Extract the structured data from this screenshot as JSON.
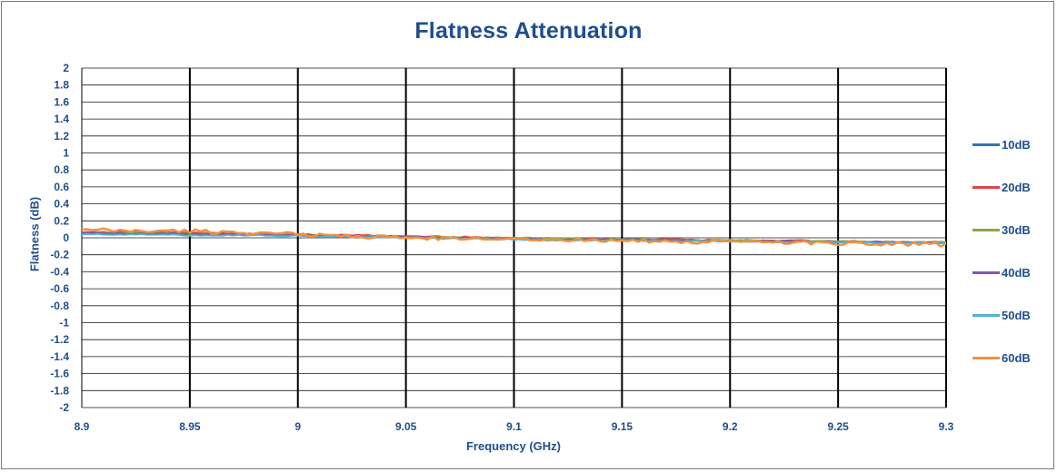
{
  "chart_data": {
    "type": "line",
    "title": "Flatness Attenuation",
    "xlabel": "Frequency (GHz)",
    "ylabel": "Flatness (dB)",
    "xlim": [
      8.9,
      9.3
    ],
    "ylim": [
      -2,
      2
    ],
    "x_ticks": [
      "8.9",
      "8.95",
      "9",
      "9.05",
      "9.1",
      "9.15",
      "9.2",
      "9.25",
      "9.3"
    ],
    "y_ticks": [
      "2",
      "1.8",
      "1.6",
      "1.4",
      "1.2",
      "1",
      "0.8",
      "0.6",
      "0.4",
      "0.2",
      "0",
      "-0.2",
      "-0.4",
      "-0.6",
      "-0.8",
      "-1",
      "-1.2",
      "-1.4",
      "-1.6",
      "-1.8",
      "-2"
    ],
    "grid": true,
    "legend_position": "right",
    "x": [
      8.9,
      8.925,
      8.95,
      8.975,
      9.0,
      9.025,
      9.05,
      9.075,
      9.1,
      9.125,
      9.15,
      9.175,
      9.2,
      9.225,
      9.25,
      9.275,
      9.3
    ],
    "series": [
      {
        "name": "10dB",
        "color": "#2e75b6",
        "values": [
          0.05,
          0.05,
          0.04,
          0.04,
          0.03,
          0.02,
          0.01,
          0.0,
          -0.01,
          -0.02,
          -0.02,
          -0.03,
          -0.03,
          -0.04,
          -0.05,
          -0.05,
          -0.06
        ]
      },
      {
        "name": "20dB",
        "color": "#e0434b",
        "values": [
          0.07,
          0.07,
          0.06,
          0.05,
          0.04,
          0.03,
          0.02,
          0.01,
          0.0,
          -0.01,
          -0.02,
          -0.02,
          -0.03,
          -0.03,
          -0.04,
          -0.05,
          -0.05
        ]
      },
      {
        "name": "30dB",
        "color": "#8aa844",
        "values": [
          0.06,
          0.06,
          0.05,
          0.04,
          0.03,
          0.02,
          0.01,
          0.0,
          0.0,
          -0.01,
          -0.02,
          -0.03,
          -0.03,
          -0.04,
          -0.04,
          -0.05,
          -0.05
        ]
      },
      {
        "name": "40dB",
        "color": "#7a5ab0",
        "values": [
          0.06,
          0.05,
          0.05,
          0.04,
          0.03,
          0.02,
          0.01,
          0.0,
          -0.01,
          -0.02,
          -0.02,
          -0.03,
          -0.04,
          -0.04,
          -0.05,
          -0.05,
          -0.06
        ]
      },
      {
        "name": "50dB",
        "color": "#4fb3d9",
        "values": [
          0.04,
          0.04,
          0.03,
          0.03,
          0.02,
          0.01,
          0.0,
          -0.01,
          -0.02,
          -0.03,
          -0.03,
          -0.04,
          -0.04,
          -0.05,
          -0.05,
          -0.06,
          -0.06
        ]
      },
      {
        "name": "60dB",
        "color": "#f0923a",
        "values": [
          0.09,
          0.08,
          0.08,
          0.06,
          0.04,
          0.02,
          0.0,
          -0.01,
          0.0,
          -0.03,
          -0.02,
          -0.06,
          -0.04,
          -0.05,
          -0.06,
          -0.07,
          -0.08
        ]
      }
    ]
  }
}
